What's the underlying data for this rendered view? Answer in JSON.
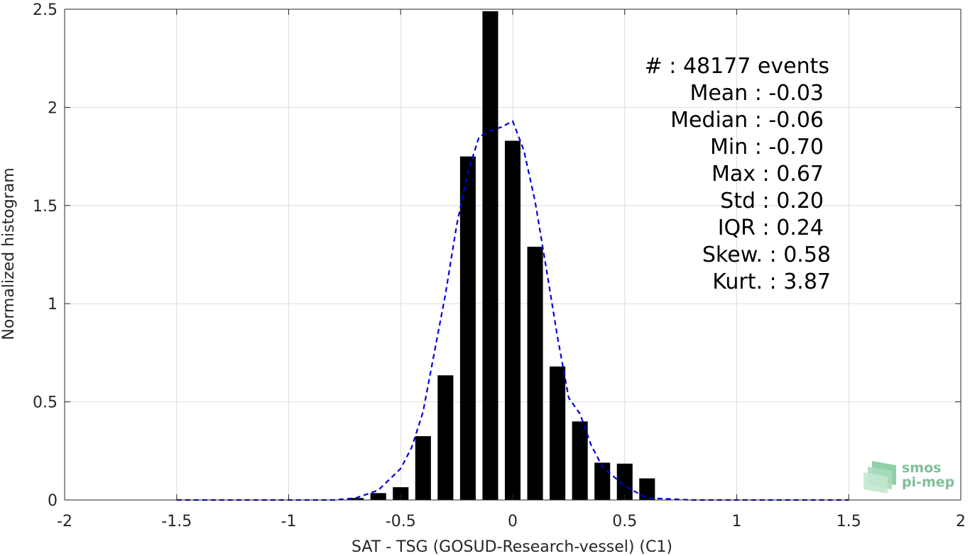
{
  "chart_data": {
    "type": "bar",
    "xlabel": "SAT - TSG (GOSUD-Research-vessel) (C1)",
    "ylabel": "Normalized histogram",
    "xlim": [
      -2,
      2
    ],
    "ylim": [
      0,
      2.5
    ],
    "xticks": [
      -2,
      -1.5,
      -1,
      -0.5,
      0,
      0.5,
      1,
      1.5,
      2
    ],
    "xtick_labels": [
      "-2",
      "-1.5",
      "-1",
      "-0.5",
      "0",
      "0.5",
      "1",
      "1.5",
      "2"
    ],
    "yticks": [
      0,
      0.5,
      1,
      1.5,
      2,
      2.5
    ],
    "ytick_labels": [
      "0",
      "0.5",
      "1",
      "1.5",
      "2",
      "2.5"
    ],
    "grid": true,
    "bar_width": 0.07,
    "bars": {
      "x": [
        -0.7,
        -0.6,
        -0.5,
        -0.4,
        -0.3,
        -0.2,
        -0.1,
        0.0,
        0.1,
        0.2,
        0.3,
        0.4,
        0.5,
        0.6
      ],
      "values": [
        0.01,
        0.035,
        0.065,
        0.325,
        0.635,
        1.75,
        2.49,
        1.83,
        1.29,
        0.68,
        0.4,
        0.19,
        0.185,
        0.11
      ],
      "color": "#000000"
    },
    "fit_curve": {
      "style": "dashed",
      "color": "#0000dd",
      "x": [
        -1.5,
        -1.4,
        -1.3,
        -1.2,
        -1.1,
        -1.0,
        -0.9,
        -0.8,
        -0.7,
        -0.6,
        -0.5,
        -0.45,
        -0.4,
        -0.35,
        -0.3,
        -0.25,
        -0.2,
        -0.15,
        -0.1,
        -0.05,
        0.0,
        0.05,
        0.1,
        0.15,
        0.2,
        0.25,
        0.3,
        0.35,
        0.4,
        0.5,
        0.6,
        0.7,
        0.8,
        0.9,
        1.0,
        1.1,
        1.2,
        1.3,
        1.4,
        1.5
      ],
      "y": [
        0,
        0,
        0,
        0,
        0,
        0,
        0,
        0,
        0.01,
        0.05,
        0.16,
        0.27,
        0.45,
        0.75,
        1.05,
        1.4,
        1.67,
        1.85,
        1.88,
        1.9,
        1.93,
        1.78,
        1.52,
        1.18,
        0.83,
        0.52,
        0.44,
        0.28,
        0.17,
        0.07,
        0.01,
        0.005,
        0,
        0,
        0,
        0,
        0,
        0,
        0,
        0
      ]
    },
    "stats": [
      "#  : 48177 events",
      "Mean : -0.03",
      "Median : -0.06",
      "Min : -0.70",
      "Max : 0.67",
      "Std : 0.20",
      "IQR : 0.24",
      "Skew. : 0.58",
      "Kurt. : 3.87"
    ]
  },
  "logo": {
    "line1": "smos",
    "line2": "pi-mep"
  }
}
